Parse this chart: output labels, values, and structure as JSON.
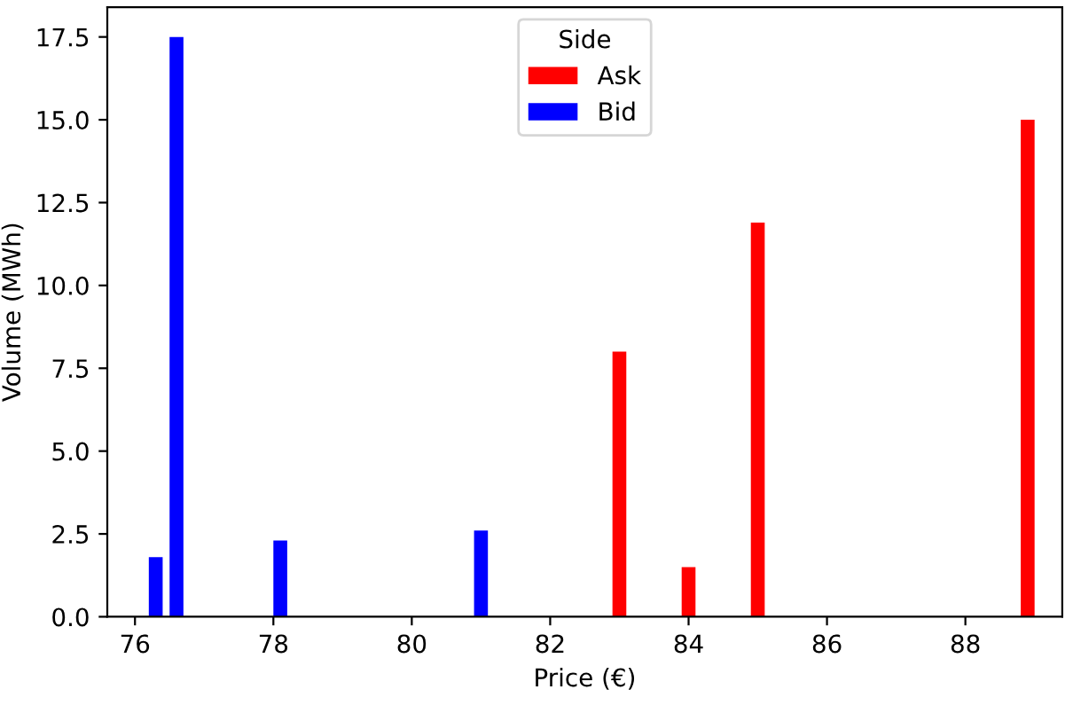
{
  "chart_data": {
    "type": "bar",
    "xlabel": "Price (€)",
    "ylabel": "Volume (MWh)",
    "legend_title": "Side",
    "legend": "top",
    "series": [
      {
        "name": "Ask",
        "color": "#ff0000",
        "x": [
          83.0,
          84.0,
          85.0,
          88.9
        ],
        "values": [
          8.0,
          1.5,
          11.9,
          15.0
        ]
      },
      {
        "name": "Bid",
        "color": "#0000ff",
        "x": [
          76.3,
          76.6,
          78.1,
          81.0
        ],
        "values": [
          1.8,
          17.5,
          2.3,
          2.6
        ]
      }
    ],
    "xlim": [
      75.6,
      89.4
    ],
    "xticks": [
      76,
      78,
      80,
      82,
      84,
      86,
      88
    ],
    "ylim": [
      0,
      18.4
    ],
    "yticks": [
      {
        "value": 0,
        "label": "0.0"
      },
      {
        "value": 2.5,
        "label": "2.5"
      },
      {
        "value": 5,
        "label": "5.0"
      },
      {
        "value": 7.5,
        "label": "7.5"
      },
      {
        "value": 10,
        "label": "10.0"
      },
      {
        "value": 12.5,
        "label": "12.5"
      },
      {
        "value": 15,
        "label": "15.0"
      },
      {
        "value": 17.5,
        "label": "17.5"
      }
    ]
  }
}
